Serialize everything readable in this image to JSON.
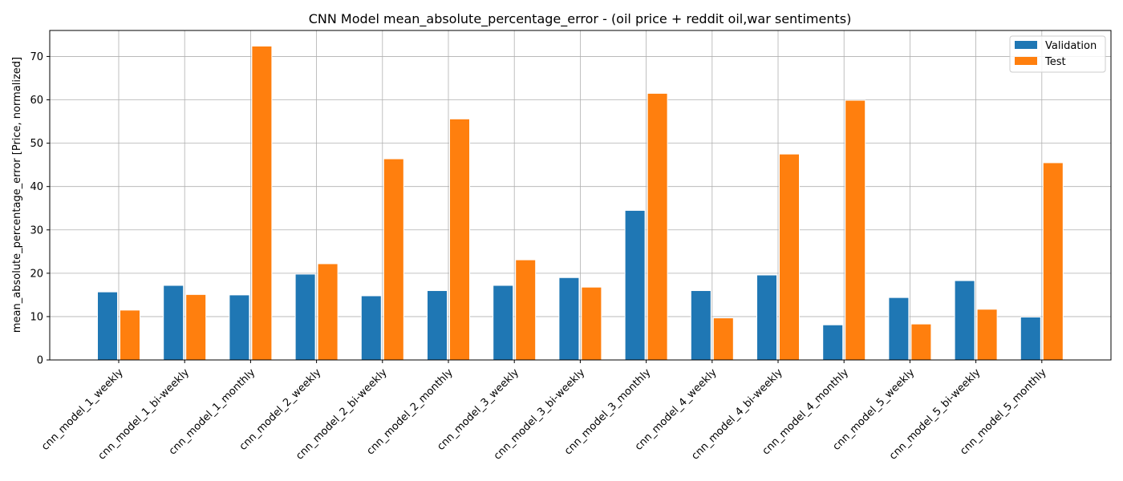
{
  "chart_data": {
    "type": "bar",
    "title": "CNN Model mean_absolute_percentage_error - (oil price + reddit oil,war sentiments)",
    "xlabel": "",
    "ylabel": "mean_absolute_percentage_error [Price, normalized]",
    "categories": [
      "cnn_model_1_weekly",
      "cnn_model_1_bi-weekly",
      "cnn_model_1_monthly",
      "cnn_model_2_weekly",
      "cnn_model_2_bi-weekly",
      "cnn_model_2_monthly",
      "cnn_model_3_weekly",
      "cnn_model_3_bi-weekly",
      "cnn_model_3_monthly",
      "cnn_model_4_weekly",
      "cnn_model_4_bi-weekly",
      "cnn_model_4_monthly",
      "cnn_model_5_weekly",
      "cnn_model_5_bi-weekly",
      "cnn_model_5_monthly"
    ],
    "series": [
      {
        "name": "Validation",
        "color": "#1f77b4",
        "values": [
          15.7,
          17.2,
          15.0,
          19.8,
          14.8,
          16.0,
          17.2,
          19.0,
          34.5,
          16.0,
          19.6,
          8.1,
          14.4,
          18.3,
          9.9
        ]
      },
      {
        "name": "Test",
        "color": "#ff7f0e",
        "values": [
          11.5,
          15.1,
          72.4,
          22.2,
          46.4,
          55.6,
          23.1,
          16.8,
          61.5,
          9.7,
          47.5,
          59.9,
          8.3,
          11.7,
          45.5
        ]
      }
    ],
    "ylim": [
      0,
      76
    ],
    "yticks": [
      0,
      10,
      20,
      30,
      40,
      50,
      60,
      70
    ],
    "grid": true,
    "legend_position": "top-right"
  }
}
